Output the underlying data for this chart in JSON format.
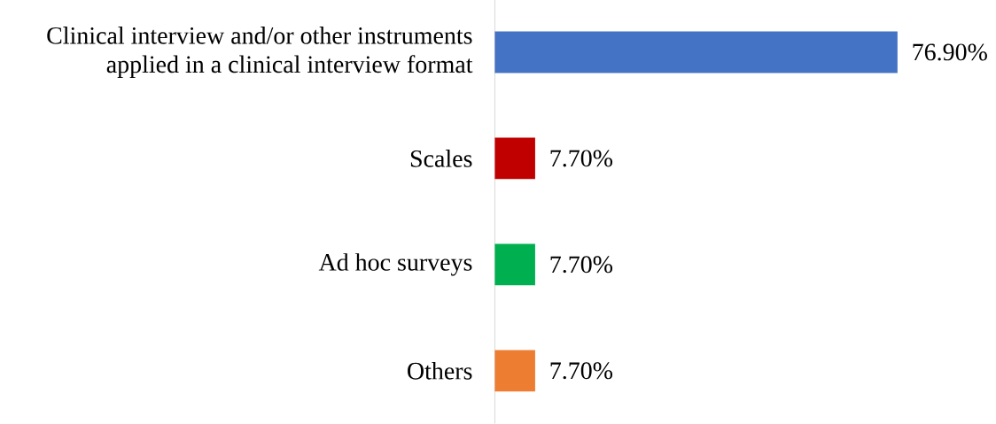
{
  "chart_data": {
    "type": "bar",
    "orientation": "horizontal",
    "categories": [
      "Clinical interview and/or other instruments applied in a clinical interview format",
      "Scales",
      "Ad hoc surveys",
      "Others"
    ],
    "values": [
      76.9,
      7.7,
      7.7,
      7.7
    ],
    "value_labels": [
      "76.90%",
      "7.70%",
      "7.70%",
      "7.70%"
    ],
    "colors": [
      "#4472c4",
      "#c00000",
      "#00b050",
      "#ed7d31"
    ]
  }
}
